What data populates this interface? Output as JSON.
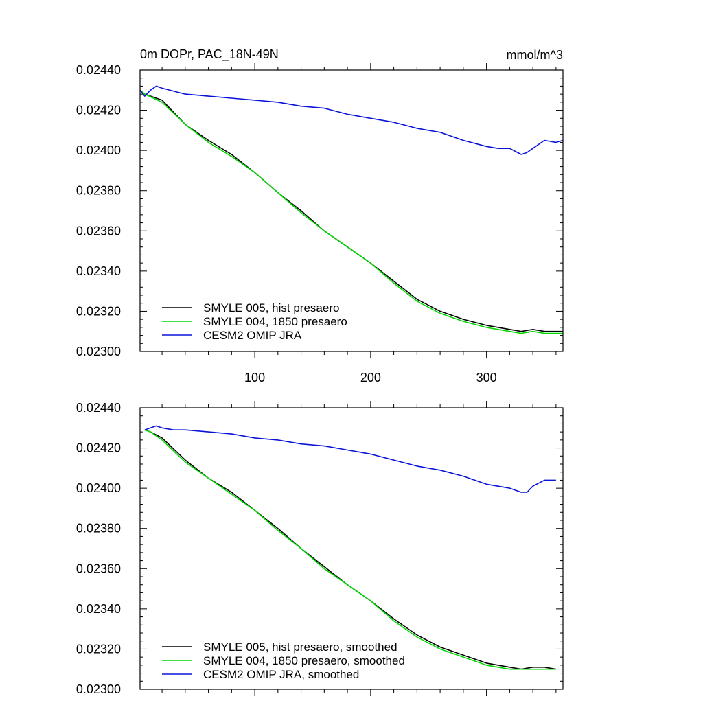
{
  "chart_data": [
    {
      "type": "line",
      "title_left": "0m DOPr, PAC_18N-49N",
      "title_right": "mmol/m^3",
      "xlim": [
        1,
        366
      ],
      "ylim": [
        0.023,
        0.0244
      ],
      "x_ticks": [
        100,
        200,
        300
      ],
      "x_tick_labels": [
        "100",
        "200",
        "300"
      ],
      "y_ticks": [
        0.023,
        0.0232,
        0.0234,
        0.0236,
        0.0238,
        0.024,
        0.0242,
        0.0244
      ],
      "y_tick_labels": [
        "0.02300",
        "0.02320",
        "0.02340",
        "0.02360",
        "0.02380",
        "0.02400",
        "0.02420",
        "0.02440"
      ],
      "legend_position": "bottom-left",
      "series": [
        {
          "name": "SMYLE 005, hist presaero",
          "color": "#000000",
          "x": [
            1,
            5,
            20,
            40,
            60,
            80,
            100,
            120,
            140,
            160,
            180,
            200,
            220,
            240,
            260,
            280,
            300,
            320,
            330,
            340,
            350,
            366
          ],
          "y": [
            0.0243,
            0.02428,
            0.02425,
            0.02413,
            0.02405,
            0.02398,
            0.02389,
            0.02379,
            0.0237,
            0.0236,
            0.02352,
            0.02344,
            0.02335,
            0.02326,
            0.0232,
            0.02316,
            0.02313,
            0.02311,
            0.0231,
            0.02311,
            0.0231,
            0.0231
          ]
        },
        {
          "name": "SMYLE 004, 1850 presaero",
          "color": "#00d800",
          "x": [
            1,
            5,
            20,
            40,
            60,
            80,
            100,
            120,
            140,
            160,
            180,
            200,
            220,
            240,
            260,
            280,
            300,
            320,
            330,
            340,
            350,
            366
          ],
          "y": [
            0.0243,
            0.02428,
            0.02424,
            0.02413,
            0.02404,
            0.02397,
            0.02389,
            0.02379,
            0.02369,
            0.0236,
            0.02352,
            0.02344,
            0.02334,
            0.02325,
            0.02319,
            0.02315,
            0.02312,
            0.0231,
            0.02309,
            0.0231,
            0.02309,
            0.02309
          ]
        },
        {
          "name": "CESM2 OMIP JRA",
          "color": "#0a14d8",
          "x": [
            1,
            5,
            10,
            15,
            20,
            40,
            60,
            80,
            100,
            120,
            140,
            160,
            180,
            200,
            220,
            240,
            260,
            280,
            300,
            310,
            320,
            330,
            335,
            340,
            350,
            360,
            366
          ],
          "y": [
            0.0243,
            0.02427,
            0.0243,
            0.02432,
            0.02431,
            0.02428,
            0.02427,
            0.02426,
            0.02425,
            0.02424,
            0.02422,
            0.02421,
            0.02418,
            0.02416,
            0.02414,
            0.02411,
            0.02409,
            0.02405,
            0.02402,
            0.02401,
            0.02401,
            0.02398,
            0.02399,
            0.02401,
            0.02405,
            0.02404,
            0.02405
          ]
        }
      ]
    },
    {
      "type": "line",
      "xlim": [
        1,
        366
      ],
      "ylim": [
        0.023,
        0.0244
      ],
      "x_ticks": [
        100,
        200,
        300
      ],
      "x_tick_labels": [],
      "y_ticks": [
        0.023,
        0.0232,
        0.0234,
        0.0236,
        0.0238,
        0.024,
        0.0242,
        0.0244
      ],
      "y_tick_labels": [
        "0.02300",
        "0.02320",
        "0.02340",
        "0.02360",
        "0.02380",
        "0.02400",
        "0.02420",
        "0.02440"
      ],
      "legend_position": "bottom-left",
      "series": [
        {
          "name": "SMYLE 005, hist presaero, smoothed",
          "color": "#000000",
          "x": [
            5,
            10,
            20,
            40,
            60,
            80,
            100,
            120,
            140,
            160,
            180,
            200,
            220,
            240,
            260,
            280,
            300,
            320,
            330,
            340,
            350,
            360
          ],
          "y": [
            0.02429,
            0.02428,
            0.02425,
            0.02414,
            0.02405,
            0.02398,
            0.02389,
            0.0238,
            0.0237,
            0.02361,
            0.02352,
            0.02344,
            0.02335,
            0.02327,
            0.02321,
            0.02317,
            0.02313,
            0.02311,
            0.0231,
            0.02311,
            0.02311,
            0.0231
          ]
        },
        {
          "name": "SMYLE 004, 1850 presaero, smoothed",
          "color": "#00d800",
          "x": [
            5,
            10,
            20,
            40,
            60,
            80,
            100,
            120,
            140,
            160,
            180,
            200,
            220,
            240,
            260,
            280,
            300,
            320,
            330,
            340,
            350,
            360
          ],
          "y": [
            0.02429,
            0.02428,
            0.02424,
            0.02413,
            0.02405,
            0.02397,
            0.02389,
            0.02379,
            0.0237,
            0.0236,
            0.02352,
            0.02344,
            0.02334,
            0.02326,
            0.0232,
            0.02316,
            0.02312,
            0.0231,
            0.0231,
            0.0231,
            0.0231,
            0.0231
          ]
        },
        {
          "name": "CESM2 OMIP JRA, smoothed",
          "color": "#0a14d8",
          "x": [
            5,
            10,
            15,
            20,
            30,
            40,
            60,
            80,
            100,
            120,
            140,
            160,
            180,
            200,
            220,
            240,
            260,
            280,
            300,
            310,
            320,
            330,
            335,
            340,
            350,
            360
          ],
          "y": [
            0.02429,
            0.0243,
            0.02431,
            0.0243,
            0.02429,
            0.02429,
            0.02428,
            0.02427,
            0.02425,
            0.02424,
            0.02422,
            0.02421,
            0.02419,
            0.02417,
            0.02414,
            0.02411,
            0.02409,
            0.02406,
            0.02402,
            0.02401,
            0.024,
            0.02398,
            0.02398,
            0.02401,
            0.02404,
            0.02404
          ]
        }
      ]
    }
  ]
}
